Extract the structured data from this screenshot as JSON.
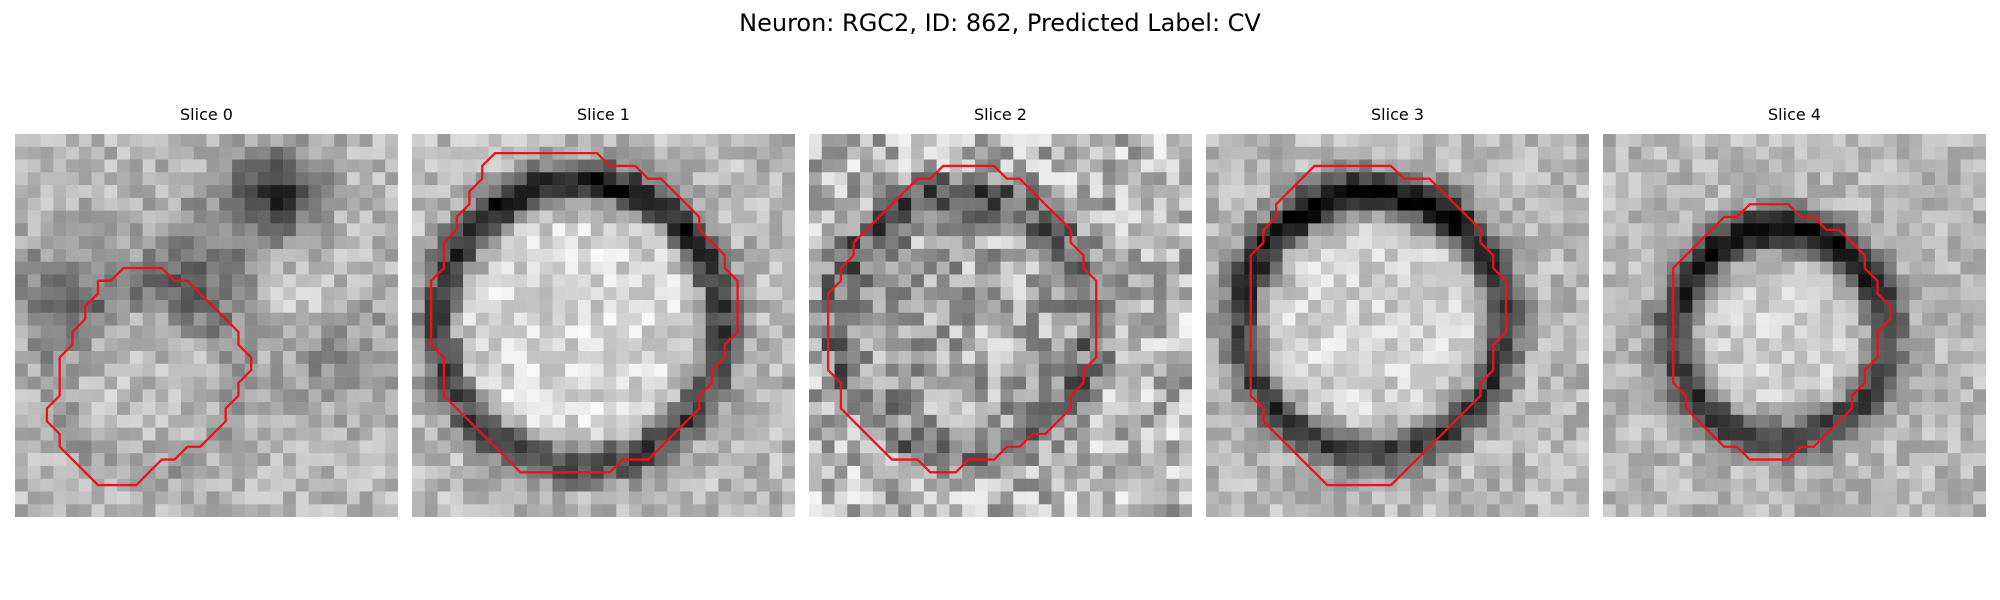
{
  "figure": {
    "title": "Neuron: RGC2, ID: 862, Predicted Label: CV"
  },
  "contour_color": "#e8141a",
  "slices": [
    {
      "title": "Slice 0",
      "contour": [
        [
          9.5,
          10.5
        ],
        [
          11.5,
          10.5
        ],
        [
          12.5,
          11.5
        ],
        [
          13.5,
          11.5
        ],
        [
          14.5,
          12.5
        ],
        [
          15.5,
          13.5
        ],
        [
          16.5,
          14.5
        ],
        [
          17.5,
          15.5
        ],
        [
          17.5,
          16.5
        ],
        [
          18.5,
          17.5
        ],
        [
          18.5,
          18.5
        ],
        [
          17.5,
          19.5
        ],
        [
          17.5,
          20.5
        ],
        [
          16.5,
          21.5
        ],
        [
          16.5,
          22.5
        ],
        [
          15.5,
          23.5
        ],
        [
          14.5,
          24.5
        ],
        [
          13.5,
          24.5
        ],
        [
          12.5,
          25.5
        ],
        [
          11.5,
          25.5
        ],
        [
          10.5,
          26.5
        ],
        [
          9.5,
          27.5
        ],
        [
          7.5,
          27.5
        ],
        [
          6.5,
          27.5
        ],
        [
          5.5,
          26.5
        ],
        [
          4.5,
          25.5
        ],
        [
          3.5,
          24.5
        ],
        [
          3.5,
          23.5
        ],
        [
          2.5,
          22.5
        ],
        [
          2.5,
          21.5
        ],
        [
          3.5,
          20.5
        ],
        [
          3.5,
          19.5
        ],
        [
          3.5,
          17.5
        ],
        [
          4.5,
          16.5
        ],
        [
          4.5,
          15.5
        ],
        [
          5.5,
          14.5
        ],
        [
          5.5,
          13.5
        ],
        [
          6.5,
          12.5
        ],
        [
          6.5,
          11.5
        ],
        [
          7.5,
          11.5
        ],
        [
          8.5,
          10.5
        ]
      ]
    },
    {
      "title": "Slice 1",
      "contour": [
        [
          6.5,
          1.5
        ],
        [
          10.5,
          1.5
        ],
        [
          14.5,
          1.5
        ],
        [
          15.5,
          2.5
        ],
        [
          17.5,
          2.5
        ],
        [
          18.5,
          3.5
        ],
        [
          19.5,
          3.5
        ],
        [
          20.5,
          4.5
        ],
        [
          21.5,
          5.5
        ],
        [
          22.5,
          6.5
        ],
        [
          22.5,
          7.5
        ],
        [
          23.5,
          8.5
        ],
        [
          24.5,
          9.5
        ],
        [
          24.5,
          10.5
        ],
        [
          25.5,
          11.5
        ],
        [
          25.5,
          13.5
        ],
        [
          25.5,
          15.5
        ],
        [
          24.5,
          16.5
        ],
        [
          24.5,
          17.5
        ],
        [
          23.5,
          18.5
        ],
        [
          23.5,
          19.5
        ],
        [
          22.5,
          20.5
        ],
        [
          22.5,
          21.5
        ],
        [
          21.5,
          22.5
        ],
        [
          20.5,
          23.5
        ],
        [
          19.5,
          24.5
        ],
        [
          18.5,
          25.5
        ],
        [
          16.5,
          25.5
        ],
        [
          15.5,
          26.5
        ],
        [
          14.5,
          26.5
        ],
        [
          13.5,
          26.5
        ],
        [
          12.5,
          26.5
        ],
        [
          10.5,
          26.5
        ],
        [
          9.5,
          26.5
        ],
        [
          8.5,
          26.5
        ],
        [
          7.5,
          25.5
        ],
        [
          6.5,
          24.5
        ],
        [
          5.5,
          23.5
        ],
        [
          4.5,
          22.5
        ],
        [
          3.5,
          21.5
        ],
        [
          2.5,
          20.5
        ],
        [
          2.5,
          19.5
        ],
        [
          2.5,
          18.5
        ],
        [
          2.5,
          17.5
        ],
        [
          1.5,
          16.5
        ],
        [
          1.5,
          15.5
        ],
        [
          1.5,
          13.5
        ],
        [
          1.5,
          11.5
        ],
        [
          2.5,
          10.5
        ],
        [
          2.5,
          8.5
        ],
        [
          3.5,
          7.5
        ],
        [
          3.5,
          6.5
        ],
        [
          4.5,
          5.5
        ],
        [
          4.5,
          4.5
        ],
        [
          5.5,
          3.5
        ],
        [
          5.5,
          2.5
        ]
      ]
    },
    {
      "title": "Slice 2",
      "contour": [
        [
          11.5,
          2.5
        ],
        [
          14.5,
          2.5
        ],
        [
          15.5,
          3.5
        ],
        [
          16.5,
          3.5
        ],
        [
          17.5,
          4.5
        ],
        [
          18.5,
          5.5
        ],
        [
          19.5,
          6.5
        ],
        [
          20.5,
          7.5
        ],
        [
          20.5,
          8.5
        ],
        [
          21.5,
          9.5
        ],
        [
          21.5,
          10.5
        ],
        [
          22.5,
          11.5
        ],
        [
          22.5,
          12.5
        ],
        [
          22.5,
          14.5
        ],
        [
          22.5,
          16.5
        ],
        [
          22.5,
          17.5
        ],
        [
          21.5,
          18.5
        ],
        [
          21.5,
          19.5
        ],
        [
          20.5,
          20.5
        ],
        [
          20.5,
          21.5
        ],
        [
          19.5,
          22.5
        ],
        [
          18.5,
          23.5
        ],
        [
          17.5,
          23.5
        ],
        [
          16.5,
          24.5
        ],
        [
          15.5,
          24.5
        ],
        [
          14.5,
          25.5
        ],
        [
          12.5,
          25.5
        ],
        [
          11.5,
          26.5
        ],
        [
          9.5,
          26.5
        ],
        [
          8.5,
          25.5
        ],
        [
          7.5,
          25.5
        ],
        [
          6.5,
          25.5
        ],
        [
          5.5,
          24.5
        ],
        [
          4.5,
          23.5
        ],
        [
          3.5,
          22.5
        ],
        [
          2.5,
          21.5
        ],
        [
          2.5,
          20.5
        ],
        [
          2.5,
          19.5
        ],
        [
          1.5,
          18.5
        ],
        [
          1.5,
          16.5
        ],
        [
          1.5,
          14.5
        ],
        [
          1.5,
          12.5
        ],
        [
          2.5,
          11.5
        ],
        [
          2.5,
          10.5
        ],
        [
          3.5,
          9.5
        ],
        [
          3.5,
          8.5
        ],
        [
          4.5,
          7.5
        ],
        [
          5.5,
          6.5
        ],
        [
          6.5,
          5.5
        ],
        [
          7.5,
          4.5
        ],
        [
          8.5,
          3.5
        ],
        [
          9.5,
          3.5
        ],
        [
          10.5,
          2.5
        ]
      ]
    },
    {
      "title": "Slice 3",
      "contour": [
        [
          10.5,
          2.5
        ],
        [
          14.5,
          2.5
        ],
        [
          15.5,
          3.5
        ],
        [
          17.5,
          3.5
        ],
        [
          18.5,
          4.5
        ],
        [
          19.5,
          5.5
        ],
        [
          20.5,
          6.5
        ],
        [
          21.5,
          7.5
        ],
        [
          21.5,
          8.5
        ],
        [
          22.5,
          9.5
        ],
        [
          22.5,
          10.5
        ],
        [
          23.5,
          11.5
        ],
        [
          23.5,
          13.5
        ],
        [
          23.5,
          15.5
        ],
        [
          22.5,
          16.5
        ],
        [
          22.5,
          17.5
        ],
        [
          22.5,
          18.5
        ],
        [
          21.5,
          19.5
        ],
        [
          21.5,
          20.5
        ],
        [
          20.5,
          21.5
        ],
        [
          19.5,
          22.5
        ],
        [
          18.5,
          23.5
        ],
        [
          17.5,
          24.5
        ],
        [
          16.5,
          25.5
        ],
        [
          15.5,
          26.5
        ],
        [
          14.5,
          27.5
        ],
        [
          10.5,
          27.5
        ],
        [
          9.5,
          27.5
        ],
        [
          8.5,
          26.5
        ],
        [
          7.5,
          25.5
        ],
        [
          6.5,
          24.5
        ],
        [
          5.5,
          23.5
        ],
        [
          4.5,
          22.5
        ],
        [
          4.5,
          21.5
        ],
        [
          3.5,
          20.5
        ],
        [
          3.5,
          19.5
        ],
        [
          3.5,
          18.5
        ],
        [
          3.5,
          17.5
        ],
        [
          3.5,
          14.5
        ],
        [
          3.5,
          11.5
        ],
        [
          3.5,
          9.5
        ],
        [
          4.5,
          8.5
        ],
        [
          4.5,
          7.5
        ],
        [
          5.5,
          6.5
        ],
        [
          5.5,
          5.5
        ],
        [
          6.5,
          4.5
        ],
        [
          7.5,
          3.5
        ],
        [
          8.5,
          2.5
        ],
        [
          9.5,
          2.5
        ]
      ]
    },
    {
      "title": "Slice 4",
      "contour": [
        [
          11.5,
          5.5
        ],
        [
          14.5,
          5.5
        ],
        [
          15.5,
          6.5
        ],
        [
          16.5,
          6.5
        ],
        [
          17.5,
          7.5
        ],
        [
          18.5,
          7.5
        ],
        [
          19.5,
          8.5
        ],
        [
          20.5,
          9.5
        ],
        [
          20.5,
          10.5
        ],
        [
          21.5,
          11.5
        ],
        [
          21.5,
          12.5
        ],
        [
          22.5,
          13.5
        ],
        [
          22.5,
          14.5
        ],
        [
          21.5,
          15.5
        ],
        [
          21.5,
          16.5
        ],
        [
          21.5,
          17.5
        ],
        [
          20.5,
          18.5
        ],
        [
          20.5,
          19.5
        ],
        [
          19.5,
          20.5
        ],
        [
          19.5,
          21.5
        ],
        [
          18.5,
          22.5
        ],
        [
          17.5,
          23.5
        ],
        [
          16.5,
          24.5
        ],
        [
          15.5,
          24.5
        ],
        [
          14.5,
          25.5
        ],
        [
          13.5,
          25.5
        ],
        [
          11.5,
          25.5
        ],
        [
          10.5,
          24.5
        ],
        [
          9.5,
          24.5
        ],
        [
          8.5,
          23.5
        ],
        [
          7.5,
          22.5
        ],
        [
          6.5,
          21.5
        ],
        [
          6.5,
          20.5
        ],
        [
          5.5,
          19.5
        ],
        [
          5.5,
          18.5
        ],
        [
          5.5,
          17.5
        ],
        [
          5.5,
          15.5
        ],
        [
          5.5,
          13.5
        ],
        [
          5.5,
          11.5
        ],
        [
          5.5,
          10.5
        ],
        [
          6.5,
          9.5
        ],
        [
          7.5,
          8.5
        ],
        [
          8.5,
          7.5
        ],
        [
          9.5,
          6.5
        ],
        [
          10.5,
          6.5
        ]
      ]
    }
  ]
}
